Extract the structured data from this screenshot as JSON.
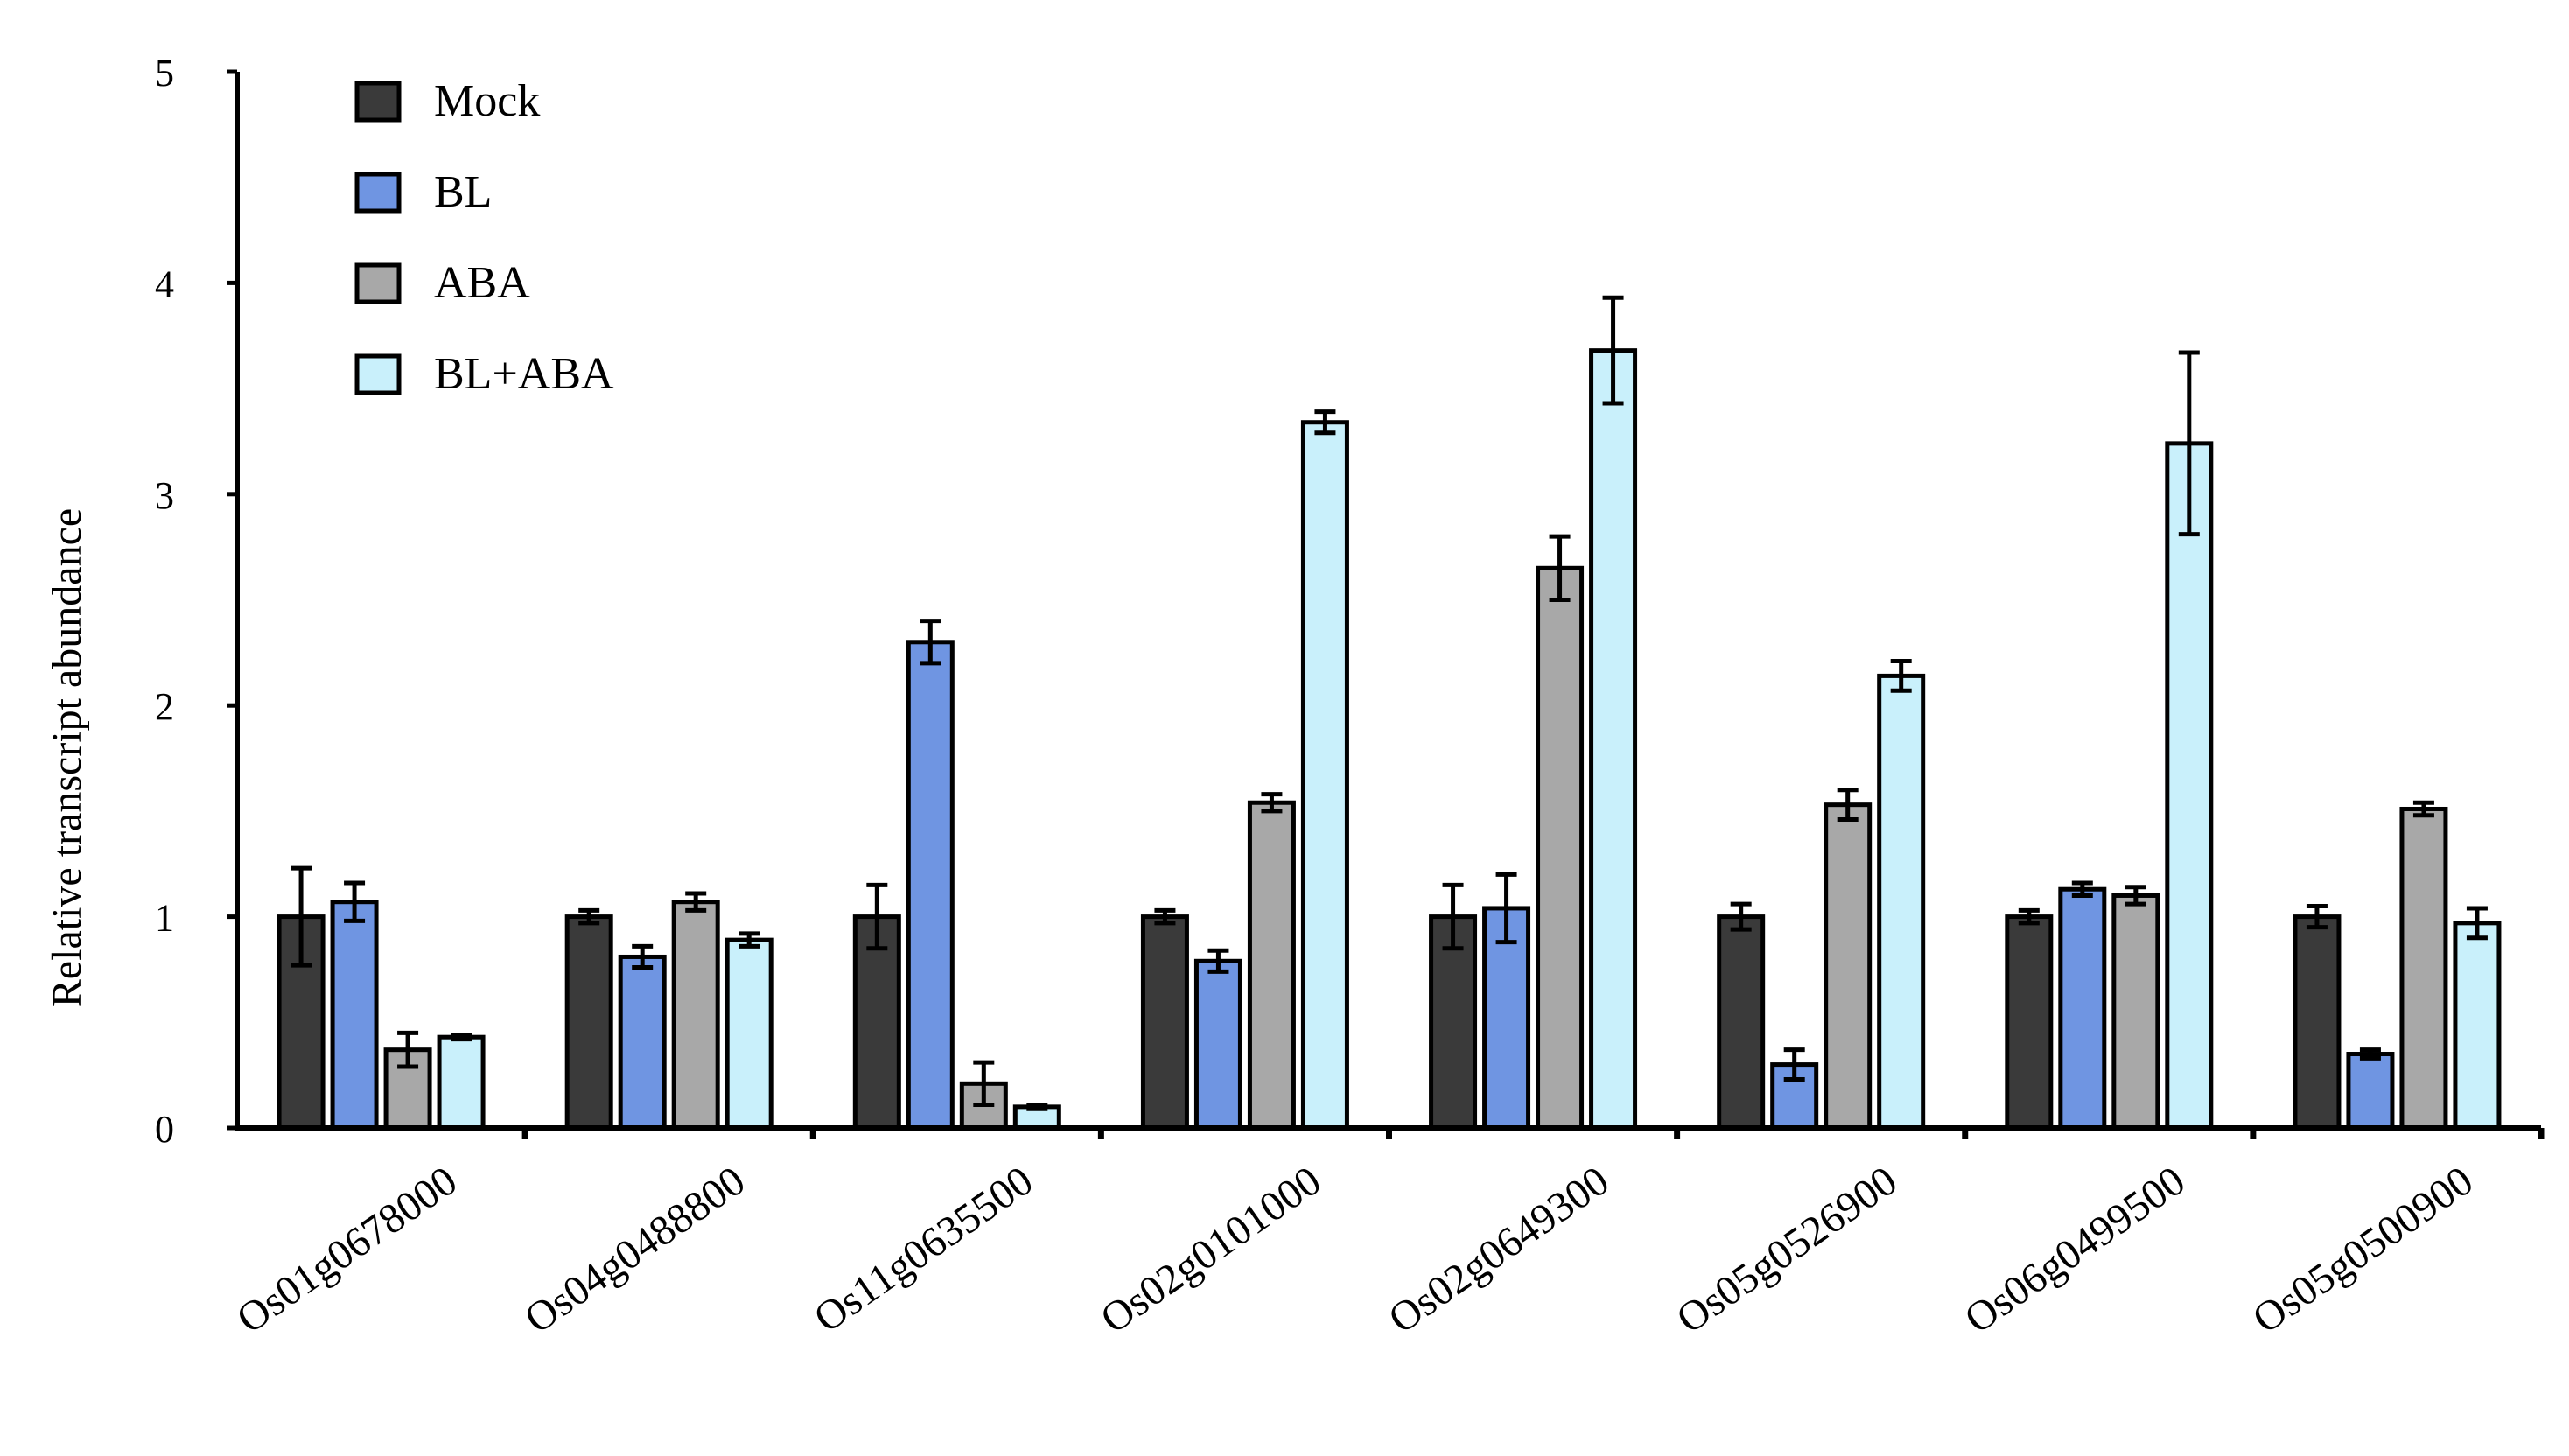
{
  "chart_data": {
    "type": "bar",
    "title": "",
    "xlabel": "",
    "ylabel": "Relative transcript abundance",
    "ylim": [
      0,
      5
    ],
    "yticks": [
      "0",
      "1",
      "2",
      "3",
      "4",
      "5"
    ],
    "grid": false,
    "legend_position": "top-left",
    "categories": [
      "Os01g0678000",
      "Os04g0488800",
      "Os11g0635500",
      "Os02g0101000",
      "Os02g0649300",
      "Os05g0526900",
      "Os06g0499500",
      "Os05g0500900"
    ],
    "series": [
      {
        "name": "Mock",
        "color": "#3a3a3a",
        "values": [
          1.0,
          1.0,
          1.0,
          1.0,
          1.0,
          1.0,
          1.0,
          1.0
        ],
        "errors": [
          0.23,
          0.03,
          0.15,
          0.03,
          0.15,
          0.06,
          0.03,
          0.05
        ]
      },
      {
        "name": "BL",
        "color": "#6f95e2",
        "values": [
          1.07,
          0.81,
          2.3,
          0.79,
          1.04,
          0.3,
          1.13,
          0.35
        ],
        "errors": [
          0.09,
          0.05,
          0.1,
          0.05,
          0.16,
          0.07,
          0.03,
          0.02
        ]
      },
      {
        "name": "ABA",
        "color": "#a8a8a8",
        "values": [
          0.37,
          1.07,
          0.21,
          1.54,
          2.65,
          1.53,
          1.1,
          1.51
        ],
        "errors": [
          0.08,
          0.04,
          0.1,
          0.04,
          0.15,
          0.07,
          0.04,
          0.03
        ]
      },
      {
        "name": "BL+ABA",
        "color": "#c9f0fb",
        "values": [
          0.43,
          0.89,
          0.1,
          3.34,
          3.68,
          2.14,
          3.24,
          0.97
        ],
        "errors": [
          0.01,
          0.03,
          0.01,
          0.05,
          0.25,
          0.07,
          0.43,
          0.07
        ]
      }
    ]
  }
}
